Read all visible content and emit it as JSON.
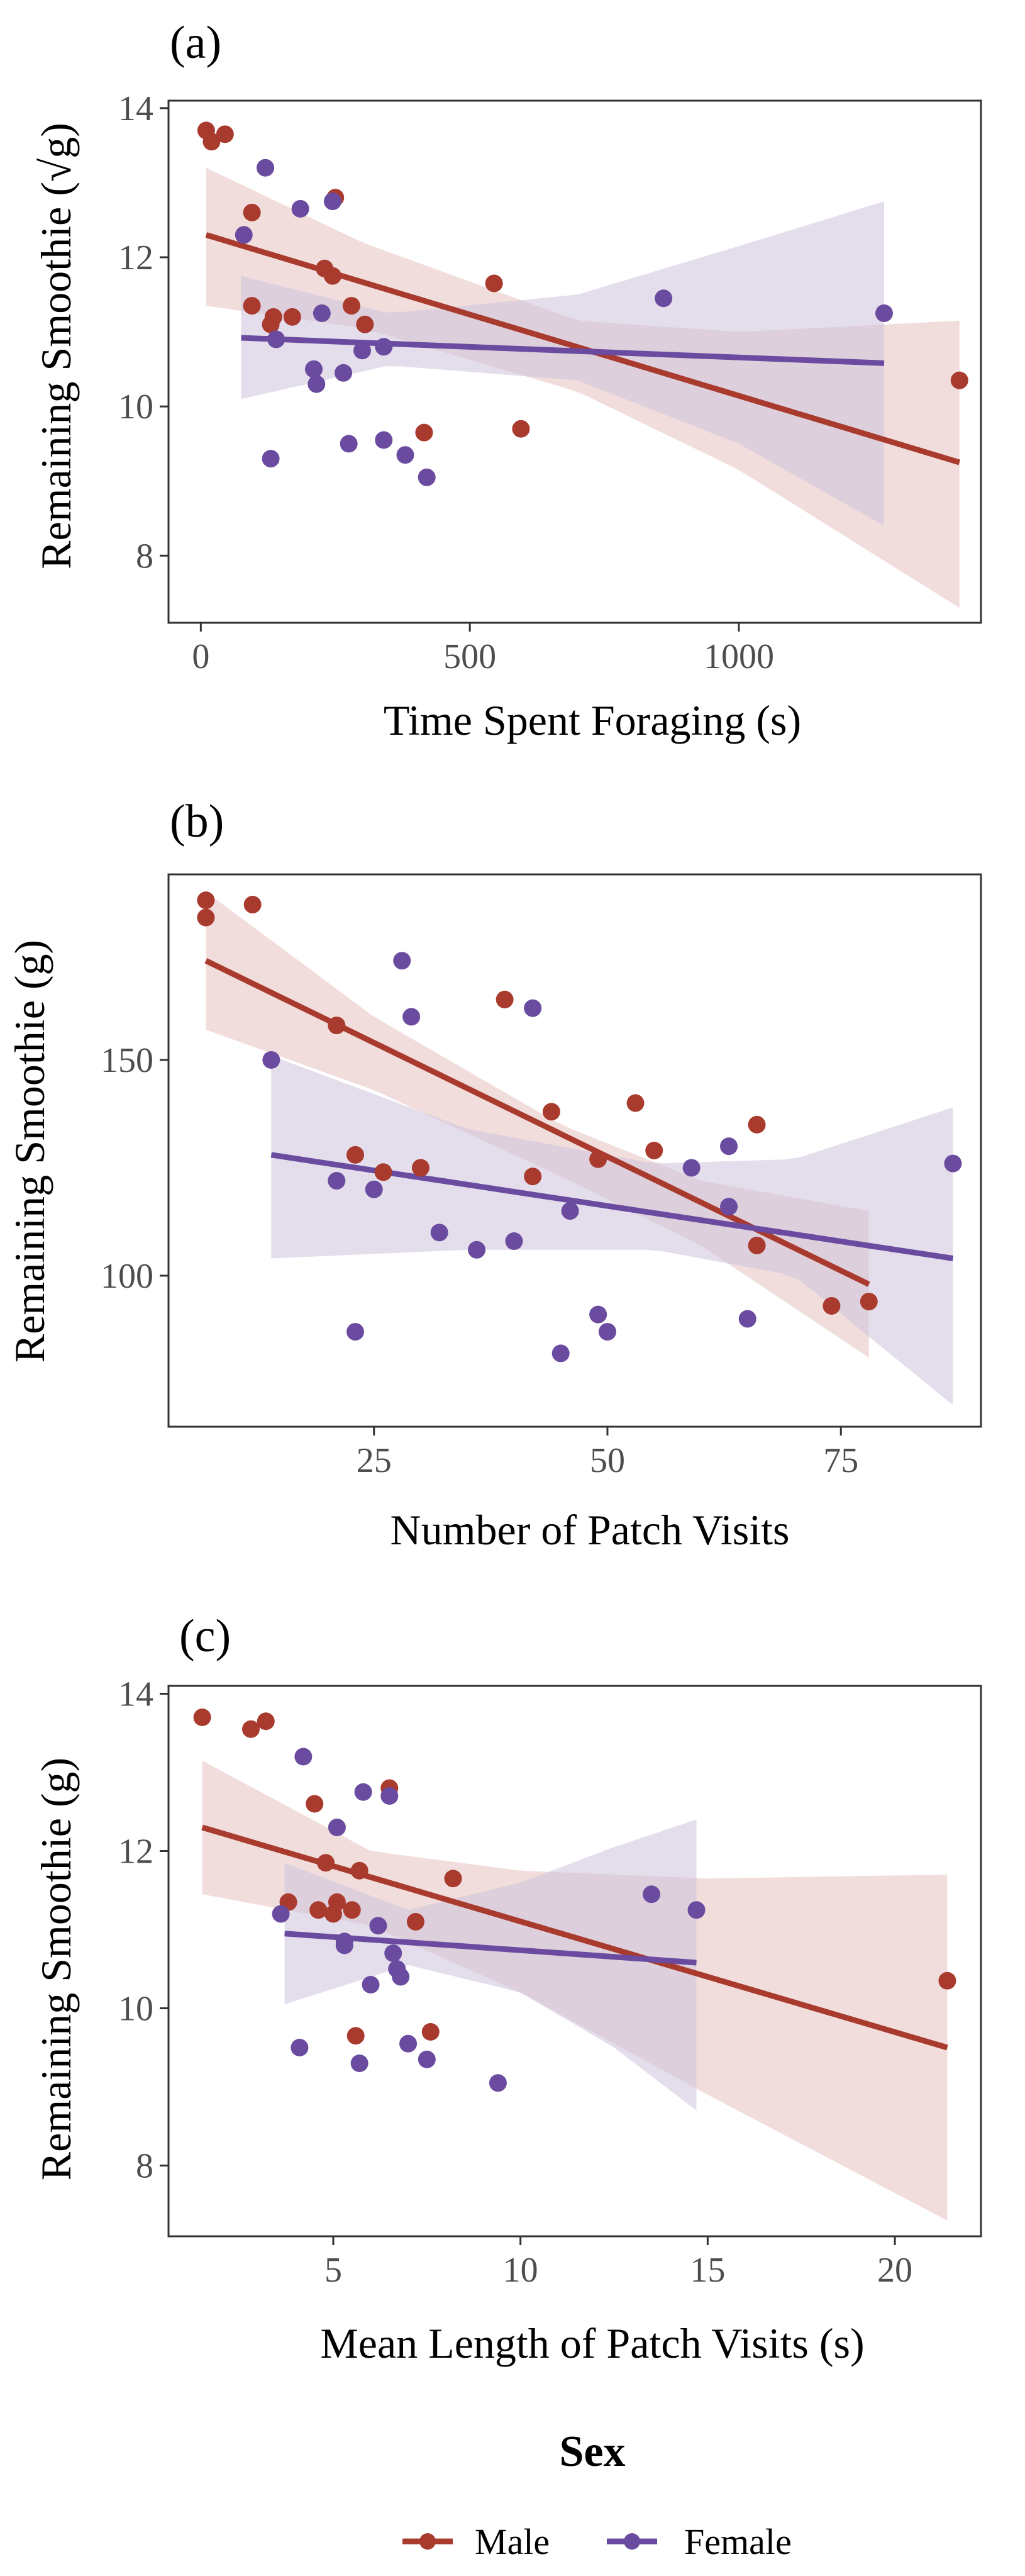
{
  "colors": {
    "male": "#a93a2e",
    "female": "#6a4ba0",
    "male_ribbon": "#e6c3bf",
    "female_ribbon": "#cdc3dd",
    "axis": "#333333",
    "tick_label": "#4d4d4d"
  },
  "legend": {
    "title": "Sex",
    "entries": [
      {
        "name": "Male",
        "color": "#a93a2e"
      },
      {
        "name": "Female",
        "color": "#6a4ba0"
      }
    ]
  },
  "chart_data": [
    {
      "type": "scatter",
      "panel": "(a)",
      "xlabel": "Time Spent Foraging (s)",
      "ylabel": "Remaining Smoothie (√g)",
      "xlim": [
        -60,
        1450
      ],
      "ylim": [
        7.1,
        14.1
      ],
      "xticks": [
        0,
        500,
        1000
      ],
      "yticks": [
        8,
        10,
        12,
        14
      ],
      "series": [
        {
          "name": "Male",
          "color": "#a93a2e",
          "points": [
            [
              10,
              13.7
            ],
            [
              20,
              13.55
            ],
            [
              45,
              13.65
            ],
            [
              95,
              12.6
            ],
            [
              95,
              11.35
            ],
            [
              130,
              11.1
            ],
            [
              135,
              11.2
            ],
            [
              170,
              11.2
            ],
            [
              230,
              11.85
            ],
            [
              245,
              11.75
            ],
            [
              250,
              12.8
            ],
            [
              280,
              11.35
            ],
            [
              305,
              11.1
            ],
            [
              415,
              9.65
            ],
            [
              545,
              11.65
            ],
            [
              595,
              9.7
            ],
            [
              1410,
              10.35
            ]
          ],
          "fit": {
            "x": [
              10,
              1410
            ],
            "y": [
              12.3,
              9.25
            ]
          },
          "ribbon": {
            "x": [
              10,
              300,
              700,
              1000,
              1410
            ],
            "lower": [
              11.35,
              11.05,
              10.2,
              9.15,
              7.3
            ],
            "upper": [
              13.2,
              12.2,
              11.15,
              11.0,
              11.15
            ]
          }
        },
        {
          "name": "Female",
          "color": "#6a4ba0",
          "points": [
            [
              80,
              12.3
            ],
            [
              120,
              13.2
            ],
            [
              130,
              9.3
            ],
            [
              140,
              10.9
            ],
            [
              185,
              12.65
            ],
            [
              210,
              10.5
            ],
            [
              215,
              10.3
            ],
            [
              225,
              11.25
            ],
            [
              245,
              12.75
            ],
            [
              265,
              10.45
            ],
            [
              275,
              9.5
            ],
            [
              300,
              10.75
            ],
            [
              340,
              10.8
            ],
            [
              340,
              9.55
            ],
            [
              380,
              9.35
            ],
            [
              420,
              9.05
            ],
            [
              860,
              11.45
            ],
            [
              1270,
              11.25
            ]
          ],
          "fit": {
            "x": [
              75,
              1270
            ],
            "y": [
              10.92,
              10.58
            ]
          },
          "ribbon": {
            "x": [
              75,
              350,
              700,
              1000,
              1270
            ],
            "lower": [
              10.1,
              10.55,
              10.35,
              9.5,
              8.4
            ],
            "upper": [
              11.75,
              11.25,
              11.5,
              12.15,
              12.75
            ]
          }
        }
      ]
    },
    {
      "type": "scatter",
      "panel": "(b)",
      "xlabel": "Number of Patch Visits",
      "ylabel": "Remaining Smoothie (g)",
      "xlim": [
        3,
        90
      ],
      "ylim": [
        65,
        193
      ],
      "xticks": [
        25,
        50,
        75
      ],
      "yticks": [
        100,
        150
      ],
      "series": [
        {
          "name": "Male",
          "color": "#a93a2e",
          "points": [
            [
              7,
              187
            ],
            [
              7,
              183
            ],
            [
              12,
              186
            ],
            [
              21,
              158
            ],
            [
              23,
              128
            ],
            [
              26,
              124
            ],
            [
              30,
              125
            ],
            [
              39,
              164
            ],
            [
              42,
              123
            ],
            [
              44,
              138
            ],
            [
              49,
              127
            ],
            [
              53,
              140
            ],
            [
              55,
              129
            ],
            [
              66,
              107
            ],
            [
              66,
              135
            ],
            [
              74,
              93
            ],
            [
              78,
              94
            ]
          ],
          "fit": {
            "x": [
              7,
              78
            ],
            "y": [
              173,
              98
            ]
          },
          "ribbon": {
            "x": [
              7,
              25,
              45,
              60,
              78
            ],
            "lower": [
              157,
              143,
              123,
              107,
              81
            ],
            "upper": [
              189,
              160,
              135,
              122,
              115
            ]
          }
        },
        {
          "name": "Female",
          "color": "#6a4ba0",
          "points": [
            [
              14,
              150
            ],
            [
              21,
              122
            ],
            [
              23,
              87
            ],
            [
              25,
              120
            ],
            [
              28,
              173
            ],
            [
              29,
              160
            ],
            [
              32,
              110
            ],
            [
              36,
              106
            ],
            [
              40,
              108
            ],
            [
              42,
              162
            ],
            [
              45,
              82
            ],
            [
              46,
              115
            ],
            [
              49,
              91
            ],
            [
              50,
              87
            ],
            [
              59,
              125
            ],
            [
              63,
              116
            ],
            [
              63,
              130
            ],
            [
              65,
              90
            ],
            [
              87,
              126
            ]
          ],
          "fit": {
            "x": [
              14,
              87
            ],
            "y": [
              128,
              104
            ]
          },
          "ribbon": {
            "x": [
              14,
              35,
              55,
              70,
              87
            ],
            "lower": [
              104,
              106,
              106,
              100,
              70
            ],
            "upper": [
              151,
              134,
              126,
              127,
              139
            ]
          }
        }
      ]
    },
    {
      "type": "scatter",
      "panel": "(c)",
      "xlabel": "Mean Length of Patch Visits (s)",
      "ylabel": "Remaining Smoothie (g)",
      "xlim": [
        0.6,
        22.3
      ],
      "ylim": [
        7.1,
        14.1
      ],
      "xticks": [
        5,
        10,
        15,
        20
      ],
      "yticks": [
        8,
        10,
        12,
        14
      ],
      "series": [
        {
          "name": "Male",
          "color": "#a93a2e",
          "points": [
            [
              1.5,
              13.7
            ],
            [
              2.8,
              13.55
            ],
            [
              3.2,
              13.65
            ],
            [
              3.8,
              11.35
            ],
            [
              4.5,
              12.6
            ],
            [
              4.6,
              11.25
            ],
            [
              4.8,
              11.85
            ],
            [
              5.0,
              11.2
            ],
            [
              5.1,
              11.35
            ],
            [
              5.5,
              11.25
            ],
            [
              5.7,
              11.75
            ],
            [
              5.6,
              9.65
            ],
            [
              6.5,
              12.8
            ],
            [
              7.2,
              11.1
            ],
            [
              7.6,
              9.7
            ],
            [
              8.2,
              11.65
            ],
            [
              21.4,
              10.35
            ]
          ],
          "fit": {
            "x": [
              1.5,
              21.4
            ],
            "y": [
              12.3,
              9.5
            ]
          },
          "ribbon": {
            "x": [
              1.5,
              6,
              10,
              15,
              21.4
            ],
            "lower": [
              11.45,
              11.05,
              10.2,
              8.9,
              7.3
            ],
            "upper": [
              13.15,
              12.0,
              11.75,
              11.65,
              11.7
            ]
          }
        },
        {
          "name": "Female",
          "color": "#6a4ba0",
          "points": [
            [
              3.6,
              11.2
            ],
            [
              4.1,
              9.5
            ],
            [
              4.2,
              13.2
            ],
            [
              5.1,
              12.3
            ],
            [
              5.3,
              10.8
            ],
            [
              5.3,
              10.85
            ],
            [
              5.7,
              9.3
            ],
            [
              5.8,
              12.75
            ],
            [
              6.0,
              10.3
            ],
            [
              6.2,
              11.05
            ],
            [
              6.5,
              12.7
            ],
            [
              6.6,
              10.7
            ],
            [
              6.7,
              10.5
            ],
            [
              6.8,
              10.4
            ],
            [
              7.0,
              9.55
            ],
            [
              7.5,
              9.35
            ],
            [
              9.4,
              9.05
            ],
            [
              13.5,
              11.45
            ],
            [
              14.7,
              11.25
            ]
          ],
          "fit": {
            "x": [
              3.7,
              14.7
            ],
            "y": [
              10.95,
              10.58
            ]
          },
          "ribbon": {
            "x": [
              3.7,
              7,
              10,
              12.5,
              14.7
            ],
            "lower": [
              10.05,
              10.55,
              10.2,
              9.5,
              8.7
            ],
            "upper": [
              11.85,
              11.25,
              11.6,
              12.05,
              12.4
            ]
          }
        }
      ]
    }
  ]
}
